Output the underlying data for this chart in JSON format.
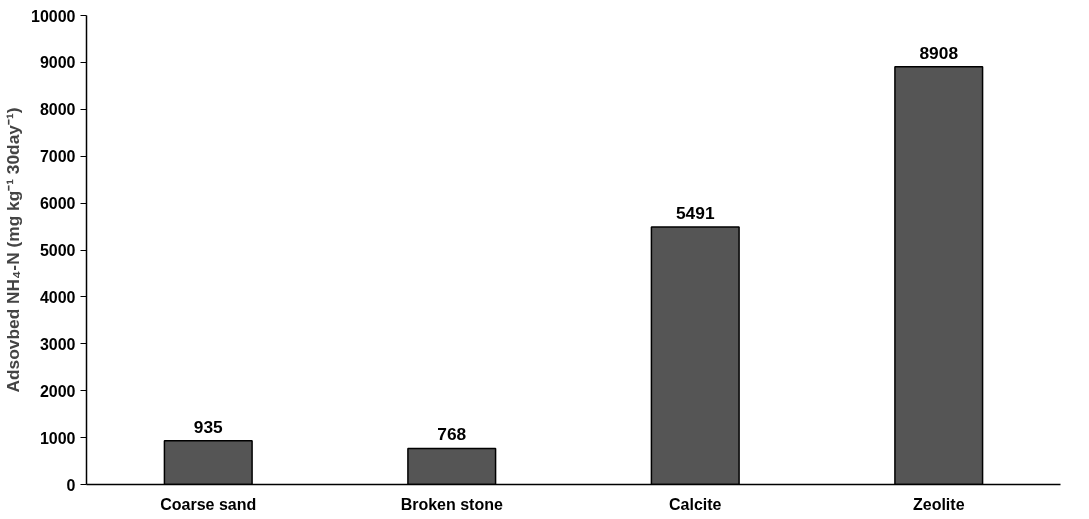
{
  "chart_data": {
    "type": "bar",
    "ylabel": "Adsovbed NH₄-N (mg kg⁻¹ 30day⁻¹)",
    "categories": [
      "Coarse sand",
      "Broken stone",
      "Calcite",
      "Zeolite"
    ],
    "values": [
      935,
      768,
      5491,
      8908
    ],
    "color": "#555555",
    "ylim": [
      0,
      10000
    ],
    "yticks": [
      0,
      1000,
      2000,
      3000,
      4000,
      5000,
      6000,
      7000,
      8000,
      9000,
      10000
    ],
    "data_labels": true,
    "grid": false
  }
}
